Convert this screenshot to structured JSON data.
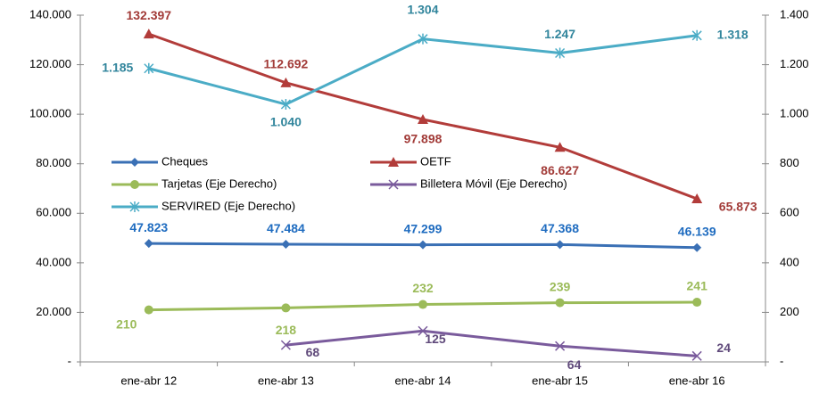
{
  "chart_data": {
    "type": "line",
    "categories": [
      "ene-abr 12",
      "ene-abr 13",
      "ene-abr 14",
      "ene-abr 15",
      "ene-abr 16"
    ],
    "ylim": [
      0,
      140000
    ],
    "yticks": [
      {
        "value": 0,
        "label": "-"
      },
      {
        "value": 20000,
        "label": "20.000"
      },
      {
        "value": 40000,
        "label": "40.000"
      },
      {
        "value": 60000,
        "label": "60.000"
      },
      {
        "value": 80000,
        "label": "80.000"
      },
      {
        "value": 100000,
        "label": "100.000"
      },
      {
        "value": 120000,
        "label": "120.000"
      },
      {
        "value": 140000,
        "label": "140.000"
      }
    ],
    "y2lim": [
      0,
      1400
    ],
    "y2ticks": [
      {
        "value": 0,
        "label": "-"
      },
      200,
      400,
      600,
      800,
      {
        "value": 1000,
        "label": "1.000"
      },
      {
        "value": 1200,
        "label": "1.200"
      },
      {
        "value": 1400,
        "label": "1.400"
      }
    ],
    "series": [
      {
        "name": "Cheques",
        "color": "#3a70b5",
        "label_color": "#1f6cc0",
        "marker": "diamond",
        "values": [
          47823,
          47484,
          47299,
          47368,
          46139
        ],
        "value_labels": [
          "47.823",
          "47.484",
          "47.299",
          "47.368",
          "46.139"
        ]
      },
      {
        "name": "OETF",
        "color": "#b23c3a",
        "label_color": "#a23b38",
        "marker": "triangle",
        "values": [
          132397,
          112692,
          97898,
          86627,
          65873
        ],
        "value_labels": [
          "132.397",
          "112.692",
          "97.898",
          "86.627",
          "65.873"
        ]
      },
      {
        "name": "Tarjetas (Eje Derecho)",
        "color": "#9bbb59",
        "label_color": "#9bbb59",
        "marker": "circle",
        "axis": "y2",
        "values": [
          210,
          218,
          232,
          239,
          241
        ]
      },
      {
        "name": "Billetera Móvil (Eje Derecho)",
        "color": "#7a5b9c",
        "label_color": "#604a7b",
        "marker": "x",
        "axis": "y2",
        "values": [
          null,
          68,
          125,
          64,
          24
        ]
      },
      {
        "name": "SERVIRED (Eje Derecho)",
        "color": "#4bacc6",
        "label_color": "#31859c",
        "marker": "star",
        "axis": "y2",
        "values": [
          1185,
          1040,
          1304,
          1247,
          1318
        ],
        "value_labels": [
          "1.185",
          "1.040",
          "1.304",
          "1.247",
          "1.318"
        ]
      }
    ]
  }
}
